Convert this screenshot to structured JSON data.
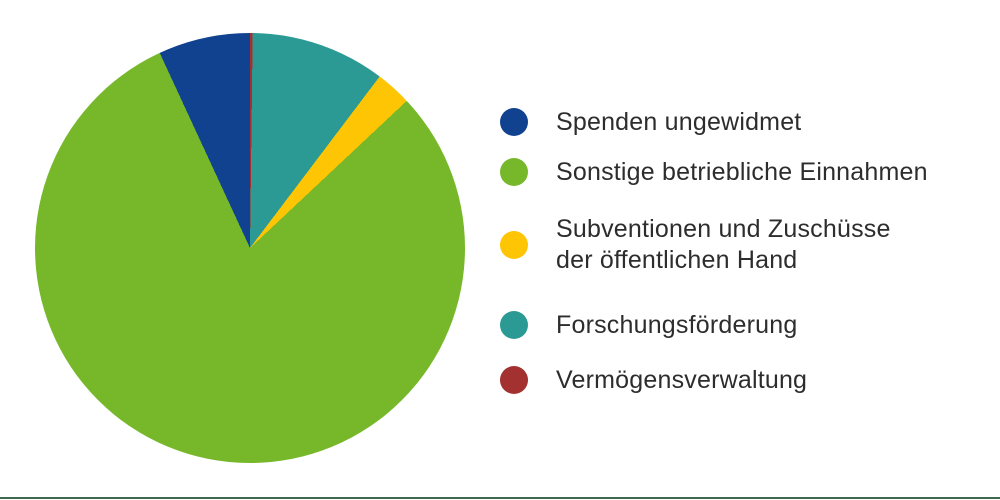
{
  "chart_data": {
    "type": "pie",
    "title": "",
    "legend_position": "right",
    "start_angle": "12-oclock",
    "winding": "counterclockwise-in-legend-order",
    "text_color": "#2d2d2d",
    "divider_color": "#3f6a4f",
    "slices": [
      {
        "label": "Spenden ungewidmet",
        "label_lines": [
          "Spenden ungewidmet"
        ],
        "value_pct": 6.9,
        "color": "#11428f"
      },
      {
        "label": "Sonstige betriebliche Einnahmen",
        "label_lines": [
          "Sonstige betriebliche Einnahmen"
        ],
        "value_pct": 80.1,
        "color": "#76b82a"
      },
      {
        "label": "Subventionen und Zuschüsse der öffentlichen Hand",
        "label_lines": [
          "Subventionen und Zuschüsse",
          "der öffentlichen Hand"
        ],
        "value_pct": 2.7,
        "color": "#fdc504"
      },
      {
        "label": "Forschungsförderung",
        "label_lines": [
          "Forschungsförderung"
        ],
        "value_pct": 10.1,
        "color": "#2b9a95"
      },
      {
        "label": "Vermögensverwaltung",
        "label_lines": [
          "Vermögensverwaltung"
        ],
        "value_pct": 0.2,
        "color": "#a2312f"
      }
    ]
  }
}
